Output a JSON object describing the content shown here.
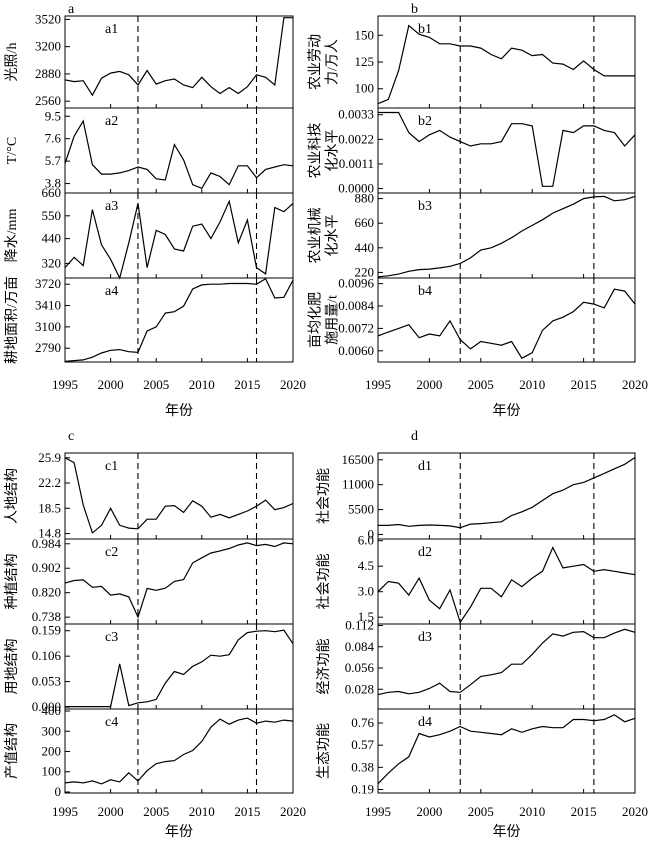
{
  "years": [
    1995,
    1996,
    1997,
    1998,
    1999,
    2000,
    2001,
    2002,
    2003,
    2004,
    2005,
    2006,
    2007,
    2008,
    2009,
    2010,
    2011,
    2012,
    2013,
    2014,
    2015,
    2016,
    2017,
    2018,
    2019,
    2020
  ],
  "xticks": [
    1995,
    2000,
    2005,
    2010,
    2015,
    2020
  ],
  "xlabel": "年份",
  "dashed_years": [
    2003,
    2016
  ],
  "groups": [
    {
      "letter": "a",
      "panels": [
        {
          "label": "a1",
          "ylabel": [
            "光照/h"
          ],
          "ylim": [
            2480,
            3560
          ],
          "yticks": [
            2560,
            2880,
            3200,
            3520
          ],
          "values": [
            2810,
            2790,
            2800,
            2630,
            2830,
            2890,
            2910,
            2870,
            2750,
            2920,
            2760,
            2800,
            2820,
            2750,
            2720,
            2840,
            2730,
            2650,
            2720,
            2650,
            2730,
            2870,
            2840,
            2750,
            3540,
            3540
          ]
        },
        {
          "label": "a2",
          "ylabel": [
            "T/°C"
          ],
          "ylim": [
            3.0,
            10.2
          ],
          "yticks": [
            3.8,
            5.7,
            7.6,
            9.5
          ],
          "values": [
            5.5,
            7.8,
            9.1,
            5.4,
            4.6,
            4.6,
            4.7,
            4.9,
            5.2,
            5.0,
            4.2,
            4.1,
            7.1,
            5.8,
            3.7,
            3.4,
            4.7,
            4.4,
            3.7,
            5.3,
            5.3,
            4.3,
            5.0,
            5.2,
            5.4,
            5.3
          ]
        },
        {
          "label": "a3",
          "ylabel": [
            "降水/mm"
          ],
          "ylim": [
            250,
            660
          ],
          "yticks": [
            320,
            440,
            550,
            660
          ],
          "values": [
            300,
            350,
            310,
            580,
            410,
            340,
            250,
            420,
            610,
            300,
            480,
            460,
            390,
            380,
            500,
            510,
            440,
            520,
            620,
            420,
            530,
            300,
            270,
            590,
            570,
            610
          ]
        },
        {
          "label": "a4",
          "ylabel": [
            "耕地面积/万亩"
          ],
          "ylim": [
            2590,
            3810
          ],
          "yticks": [
            2790,
            3100,
            3410,
            3720
          ],
          "values": [
            2600,
            2610,
            2620,
            2660,
            2720,
            2760,
            2770,
            2740,
            2730,
            3040,
            3100,
            3300,
            3320,
            3400,
            3650,
            3710,
            3720,
            3720,
            3730,
            3730,
            3730,
            3720,
            3800,
            3520,
            3530,
            3780
          ]
        }
      ]
    },
    {
      "letter": "b",
      "panels": [
        {
          "label": "b1",
          "ylabel": [
            "农业劳动",
            "力/万人"
          ],
          "ylim": [
            82,
            168
          ],
          "yticks": [
            100,
            125,
            150
          ],
          "values": [
            86,
            90,
            117,
            159,
            151,
            148,
            142,
            142,
            140,
            140,
            138,
            132,
            128,
            138,
            136,
            131,
            132,
            124,
            123,
            118,
            126,
            118,
            112,
            112,
            112,
            112
          ]
        },
        {
          "label": "b2",
          "ylabel": [
            "农业科技",
            "化水平"
          ],
          "ylim": [
            -0.0002,
            0.0036
          ],
          "yticks": [
            0,
            0.0011,
            0.0022,
            0.0033
          ],
          "values": [
            0.0034,
            0.0034,
            0.0034,
            0.0025,
            0.0021,
            0.0024,
            0.0026,
            0.0023,
            0.0021,
            0.0019,
            0.002,
            0.002,
            0.0021,
            0.0029,
            0.0029,
            0.0028,
            0.0001,
            0.0001,
            0.0026,
            0.0025,
            0.0028,
            0.0028,
            0.0026,
            0.0025,
            0.0019,
            0.0024
          ]
        },
        {
          "label": "b3",
          "ylabel": [
            "农业机械",
            "化水平"
          ],
          "ylim": [
            170,
            930
          ],
          "yticks": [
            220,
            440,
            660,
            880
          ],
          "values": [
            180,
            190,
            205,
            230,
            245,
            250,
            260,
            275,
            300,
            350,
            420,
            440,
            480,
            530,
            590,
            640,
            690,
            750,
            790,
            830,
            880,
            895,
            900,
            860,
            870,
            900
          ]
        },
        {
          "label": "b4",
          "ylabel": [
            "亩均化肥",
            "施用量/t"
          ],
          "ylim": [
            0.0054,
            0.0099
          ],
          "yticks": [
            0.006,
            0.0072,
            0.0084,
            0.0096
          ],
          "values": [
            0.0068,
            0.007,
            0.0072,
            0.0074,
            0.0067,
            0.0069,
            0.0068,
            0.0076,
            0.0066,
            0.0061,
            0.0065,
            0.0064,
            0.0063,
            0.0065,
            0.0056,
            0.0059,
            0.0071,
            0.0076,
            0.0078,
            0.0081,
            0.0086,
            0.0085,
            0.0083,
            0.0093,
            0.0092,
            0.0085
          ]
        }
      ]
    },
    {
      "letter": "c",
      "panels": [
        {
          "label": "c1",
          "ylabel": [
            "人地结构"
          ],
          "ylim": [
            14.0,
            26.6
          ],
          "yticks": [
            14.8,
            18.5,
            22.2,
            25.9
          ],
          "values": [
            25.9,
            25.2,
            19.0,
            14.9,
            16.0,
            18.5,
            16.0,
            15.6,
            15.5,
            16.9,
            16.9,
            18.8,
            18.9,
            17.9,
            19.6,
            18.8,
            17.2,
            17.6,
            17.1,
            17.6,
            18.1,
            18.8,
            19.7,
            18.3,
            18.6,
            19.2
          ]
        },
        {
          "label": "c2",
          "ylabel": [
            "种植结构"
          ],
          "ylim": [
            0.715,
            1.0
          ],
          "yticks": [
            0.738,
            0.82,
            0.902,
            0.984
          ],
          "values": [
            0.852,
            0.861,
            0.863,
            0.838,
            0.841,
            0.812,
            0.816,
            0.806,
            0.738,
            0.834,
            0.828,
            0.835,
            0.858,
            0.864,
            0.92,
            0.937,
            0.953,
            0.96,
            0.968,
            0.98,
            0.987,
            0.978,
            0.982,
            0.975,
            0.987,
            0.984
          ]
        },
        {
          "label": "c3",
          "ylabel": [
            "用地结构"
          ],
          "ylim": [
            -0.004,
            0.173
          ],
          "yticks": [
            0,
            0.053,
            0.106,
            0.159
          ],
          "values": [
            0.001,
            0.001,
            0.001,
            0.001,
            0.001,
            0.001,
            0.09,
            0.003,
            0.009,
            0.011,
            0.016,
            0.05,
            0.074,
            0.068,
            0.085,
            0.094,
            0.108,
            0.106,
            0.109,
            0.14,
            0.155,
            0.158,
            0.159,
            0.157,
            0.16,
            0.132
          ]
        },
        {
          "label": "c4",
          "ylabel": [
            "产值结构"
          ],
          "ylim": [
            -5,
            410
          ],
          "yticks": [
            0,
            100,
            200,
            300,
            400
          ],
          "values": [
            45,
            50,
            45,
            55,
            40,
            60,
            50,
            95,
            55,
            105,
            140,
            150,
            155,
            185,
            205,
            250,
            320,
            360,
            335,
            355,
            365,
            340,
            350,
            345,
            355,
            350
          ]
        }
      ]
    },
    {
      "letter": "d",
      "panels": [
        {
          "label": "d1",
          "ylabel": [
            "社会功能"
          ],
          "ylim": [
            -1000,
            18000
          ],
          "yticks": [
            0,
            5500,
            11000,
            16500
          ],
          "values": [
            2000,
            2000,
            2200,
            1800,
            2000,
            2100,
            2000,
            1900,
            1500,
            2300,
            2400,
            2600,
            2800,
            4200,
            5000,
            6000,
            7500,
            9000,
            9800,
            11000,
            11500,
            12500,
            13500,
            14500,
            15500,
            17000
          ]
        },
        {
          "label": "d2",
          "ylabel": [
            "社会功能"
          ],
          "ylim": [
            1.1,
            6.1
          ],
          "yticks": [
            1.5,
            3.0,
            4.5,
            6.0
          ],
          "values": [
            3.0,
            3.6,
            3.5,
            2.8,
            3.8,
            2.5,
            2.0,
            3.1,
            1.2,
            2.1,
            3.2,
            3.2,
            2.7,
            3.7,
            3.3,
            3.8,
            4.2,
            5.6,
            4.4,
            4.5,
            4.6,
            4.2,
            4.3,
            4.2,
            4.1,
            4.0
          ]
        },
        {
          "label": "d3",
          "ylabel": [
            "经济功能"
          ],
          "ylim": [
            0.002,
            0.114
          ],
          "yticks": [
            0.028,
            0.056,
            0.084,
            0.112
          ],
          "values": [
            0.021,
            0.024,
            0.025,
            0.022,
            0.024,
            0.029,
            0.036,
            0.025,
            0.024,
            0.034,
            0.045,
            0.047,
            0.05,
            0.061,
            0.061,
            0.074,
            0.089,
            0.101,
            0.098,
            0.103,
            0.104,
            0.096,
            0.096,
            0.102,
            0.107,
            0.103
          ]
        },
        {
          "label": "d4",
          "ylabel": [
            "生态功能"
          ],
          "ylim": [
            0.16,
            0.88
          ],
          "yticks": [
            0.19,
            0.38,
            0.57,
            0.76
          ],
          "values": [
            0.24,
            0.33,
            0.41,
            0.47,
            0.67,
            0.64,
            0.66,
            0.69,
            0.73,
            0.69,
            0.68,
            0.67,
            0.66,
            0.71,
            0.68,
            0.71,
            0.73,
            0.72,
            0.72,
            0.79,
            0.79,
            0.78,
            0.79,
            0.83,
            0.77,
            0.8
          ]
        }
      ]
    }
  ]
}
